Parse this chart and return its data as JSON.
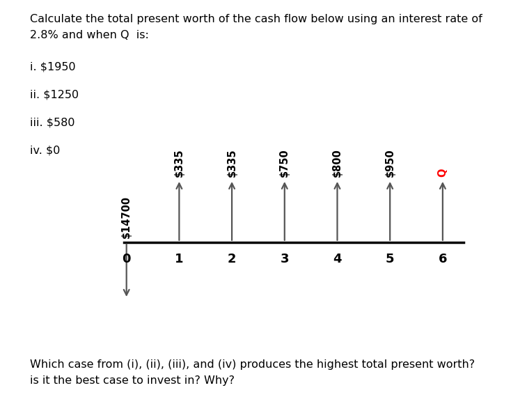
{
  "header_line1": "Calculate the total present worth of the cash flow below using an interest rate of",
  "header_line2": "2.8% and when Q  is:",
  "items": [
    "i. $1950",
    "ii. $1250",
    "iii. $580",
    "iv. $0"
  ],
  "footer_line1": "Which case from (i), (ii), (iii), and (iv) produces the highest total present worth?",
  "footer_line2": "is it the best case to invest in? Why?",
  "time_points": [
    0,
    1,
    2,
    3,
    4,
    5,
    6
  ],
  "labels": [
    "$14700",
    "$335",
    "$335",
    "$750",
    "$800",
    "$950",
    "Q"
  ],
  "label_colors": [
    "#000000",
    "#000000",
    "#000000",
    "#000000",
    "#000000",
    "#000000",
    "#ff0000"
  ],
  "arrow_down_index": 0,
  "arrow_color": "#555555",
  "bg_color": "#ffffff",
  "font_size_header": 11.5,
  "font_size_items": 11.5,
  "font_size_footer": 11.5,
  "font_size_labels": 10.5,
  "font_size_ticks": 13
}
